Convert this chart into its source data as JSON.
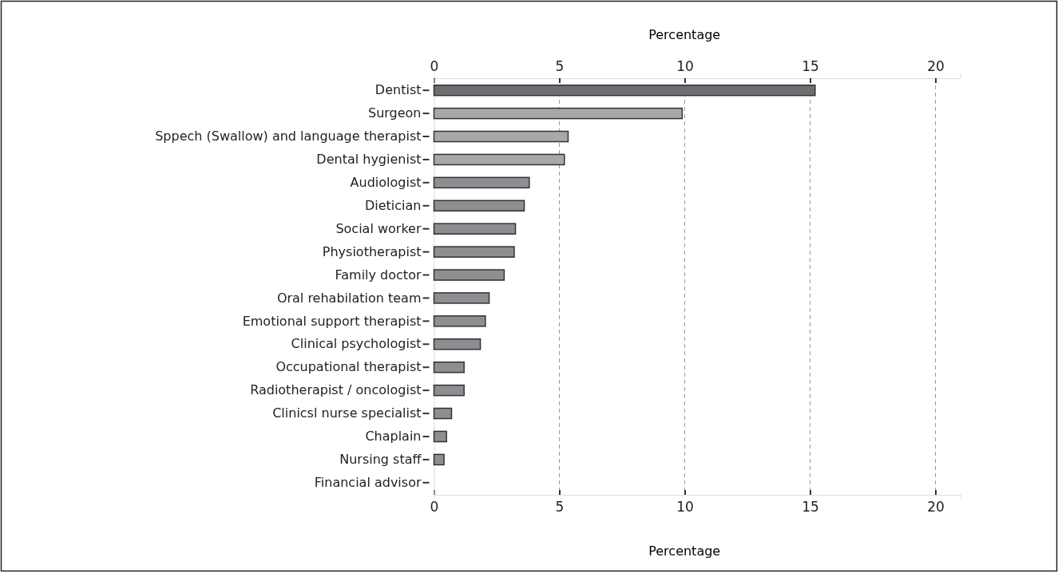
{
  "chart_data": {
    "type": "bar",
    "orientation": "horizontal",
    "categories": [
      "Dentist",
      "Surgeon",
      "Sppech (Swallow) and language therapist",
      "Dental hygienist",
      "Audiologist",
      "Dietician",
      "Social worker",
      "Physiotherapist",
      "Family doctor",
      "Oral rehabilation team",
      "Emotional support therapist",
      "Clinical psychologist",
      "Occupational therapist",
      "Radiotherapist / oncologist",
      "Clinicsl nurse specialist",
      "Chaplain",
      "Nursing staff",
      "Financial advisor"
    ],
    "values": [
      15.2,
      9.9,
      5.35,
      5.2,
      3.8,
      3.6,
      3.25,
      3.2,
      2.8,
      2.2,
      2.05,
      1.85,
      1.2,
      1.2,
      0.7,
      0.5,
      0.4,
      0
    ],
    "colors": [
      "#6e6e72",
      "#a8a8ac",
      "#a8a8ac",
      "#a8a8ac",
      "#8e8e92",
      "#8e8e92",
      "#8e8e92",
      "#8e8e92",
      "#8e8e92",
      "#8e8e92",
      "#8e8e92",
      "#8e8e92",
      "#8e8e92",
      "#8e8e92",
      "#8e8e92",
      "#8e8e92",
      "#8e8e92",
      "#8e8e92"
    ],
    "xlabel": "Percentage",
    "x2label": "Percentage",
    "xlim": [
      0,
      21
    ],
    "xticks": [
      0,
      5,
      10,
      15,
      20
    ],
    "x2lim": [
      0,
      21
    ],
    "x2ticks": [
      0,
      5,
      10,
      15,
      20
    ],
    "grid": "x"
  }
}
